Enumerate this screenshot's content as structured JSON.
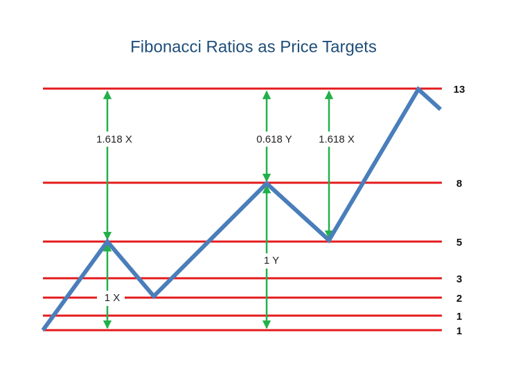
{
  "title": "Fibonacci Ratios as Price Targets",
  "levels": [
    "13",
    "8",
    "5",
    "3",
    "2",
    "1",
    "1"
  ],
  "annotations": [
    "1.618 X",
    "0.618 Y",
    "1.618 X",
    "1 X",
    "1 Y"
  ]
}
